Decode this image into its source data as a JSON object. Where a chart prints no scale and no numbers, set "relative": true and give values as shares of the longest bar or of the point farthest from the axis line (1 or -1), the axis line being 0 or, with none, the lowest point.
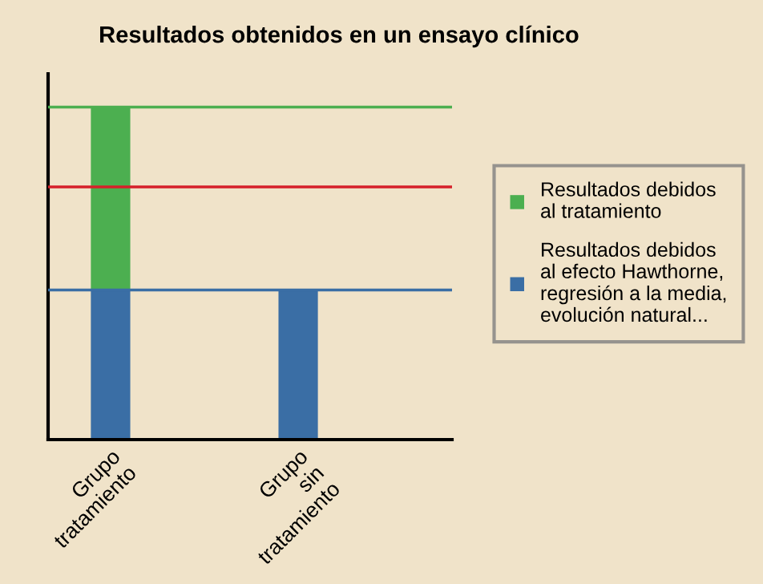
{
  "chart_data": {
    "type": "bar",
    "title": "Resultados obtenidos en un ensayo clínico",
    "categories": [
      "Grupo\ntratamiento",
      "Grupo\nsin\ntratamiento"
    ],
    "stacked": true,
    "relative": true,
    "series": [
      {
        "name": "Resultados debidos\nal efecto Hawthorne,\nregresión a la media,\nevolución natural...",
        "color": "#3a6ea5",
        "values": [
          0.45,
          0.45
        ]
      },
      {
        "name": "Resultados debidos\nal tratamiento",
        "color": "#4caf50",
        "values": [
          0.55,
          null
        ]
      }
    ],
    "ref_lines": [
      {
        "axis": "y",
        "value": 1,
        "color": "#4caf50"
      },
      {
        "axis": "y",
        "value": 0.76,
        "color": "#d6202a"
      },
      {
        "axis": "y",
        "value": 0.45,
        "color": "#3a6ea5"
      }
    ],
    "legend": "right",
    "grid": false
  }
}
